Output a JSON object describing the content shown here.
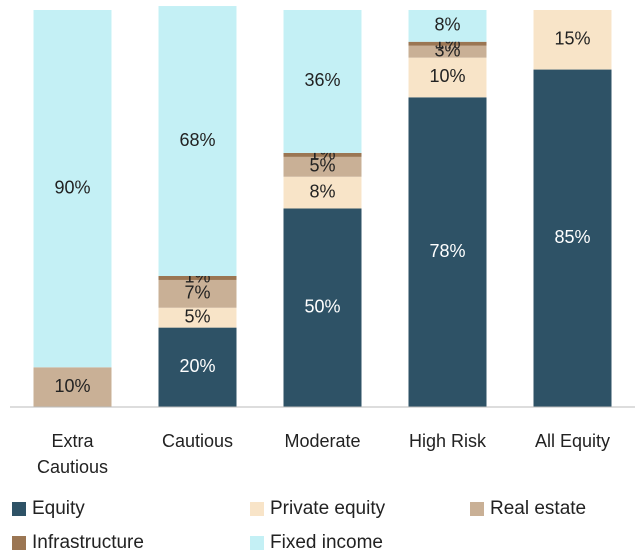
{
  "chart_data": {
    "type": "stacked_bar",
    "categories": [
      "Extra Cautious",
      "Cautious",
      "Moderate",
      "High Risk",
      "All Equity"
    ],
    "ylim": [
      0,
      100
    ],
    "series": [
      {
        "name": "Equity",
        "color": "#2e5266",
        "values": [
          null,
          20,
          50,
          78,
          85
        ],
        "value_labels": [
          null,
          "20%",
          "50%",
          "78%",
          "85%"
        ]
      },
      {
        "name": "Private equity",
        "color": "#f8e4c8",
        "values": [
          null,
          5,
          8,
          10,
          15
        ],
        "value_labels": [
          null,
          "5%",
          "8%",
          "10%",
          "15%"
        ]
      },
      {
        "name": "Real estate",
        "color": "#c9b096",
        "values": [
          10,
          7,
          5,
          3,
          null
        ],
        "value_labels": [
          "10%",
          "7%",
          "5%",
          "3%",
          null
        ]
      },
      {
        "name": "Infrastructure",
        "color": "#9b7653",
        "values": [
          null,
          1,
          1,
          1,
          null
        ],
        "value_labels": [
          null,
          "1%",
          "1%",
          "1%",
          null
        ]
      },
      {
        "name": "Fixed income",
        "color": "#c4f0f5",
        "values": [
          90,
          68,
          36,
          8,
          null
        ],
        "value_labels": [
          "90%",
          "68%",
          "36%",
          "8%",
          null
        ]
      }
    ]
  }
}
